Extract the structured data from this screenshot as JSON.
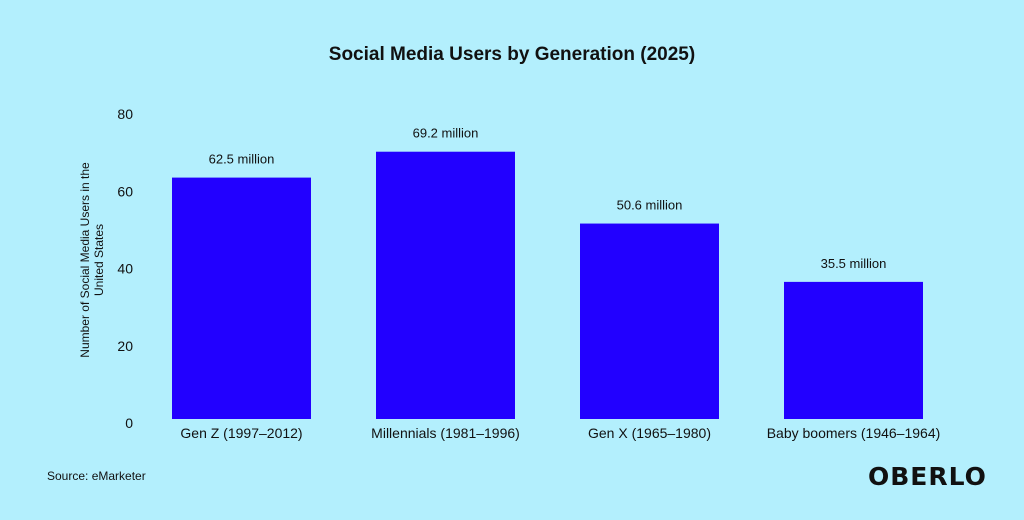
{
  "chart_data": {
    "type": "bar",
    "title": "Social Media Users by Generation (2025)",
    "ylabel": "Number of Social Media Users in the United States",
    "xlabel": "",
    "categories": [
      "Gen Z (1997–2012)",
      "Millennials (1981–1996)",
      "Gen X (1965–1980)",
      "Baby boomers (1946–1964)"
    ],
    "values": [
      62.5,
      69.2,
      50.6,
      35.5
    ],
    "data_labels": [
      "62.5 million",
      "69.2 million",
      "50.6 million",
      "35.5 million"
    ],
    "ylim": [
      0,
      80
    ],
    "yticks": [
      0,
      20,
      40,
      60,
      80
    ],
    "grid": false,
    "bar_color": "#2200ff",
    "background": "#b3effd"
  },
  "source": "Source: eMarketer",
  "logo": "OBERLO"
}
